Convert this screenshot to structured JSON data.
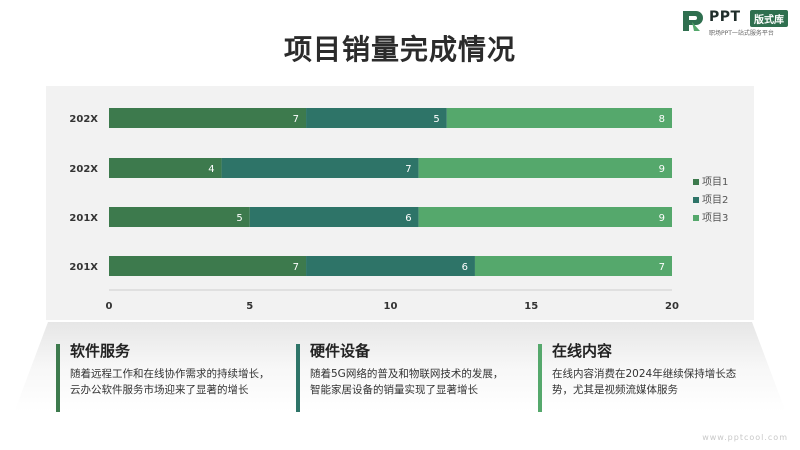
{
  "logo": {
    "brand": "PPT",
    "edition": "版式库",
    "tagline": "职场PPT一站式服务平台",
    "icon": "ppt-logo-icon"
  },
  "title": "项目销量完成情况",
  "colors": {
    "series1": "#3d7a4d",
    "series2": "#2e7468",
    "series3": "#55a86c",
    "card1_bar": "#3d7a4d",
    "card2_bar": "#2e7468",
    "card3_bar": "#55a86c"
  },
  "chart_data": {
    "type": "bar",
    "orientation": "horizontal",
    "stacked": true,
    "categories": [
      "202X",
      "202X",
      "201X",
      "201X"
    ],
    "series": [
      {
        "name": "项目1",
        "values": [
          7,
          4,
          5,
          7
        ]
      },
      {
        "name": "项目2",
        "values": [
          5,
          7,
          6,
          6
        ]
      },
      {
        "name": "项目3",
        "values": [
          8,
          9,
          9,
          7
        ]
      }
    ],
    "xlim": [
      0,
      20
    ],
    "xticks": [
      0,
      5,
      10,
      15,
      20
    ],
    "grid": false,
    "legend": "right"
  },
  "cards": [
    {
      "title": "软件服务",
      "desc": "随着远程工作和在线协作需求的持续增长，云办公软件服务市场迎来了显著的增长"
    },
    {
      "title": "硬件设备",
      "desc": "随着5G网络的普及和物联网技术的发展，智能家居设备的销量实现了显著增长"
    },
    {
      "title": "在线内容",
      "desc": "在线内容消费在2024年继续保持增长态势，尤其是视频流媒体服务"
    }
  ],
  "watermark": "www.pptcool.com"
}
